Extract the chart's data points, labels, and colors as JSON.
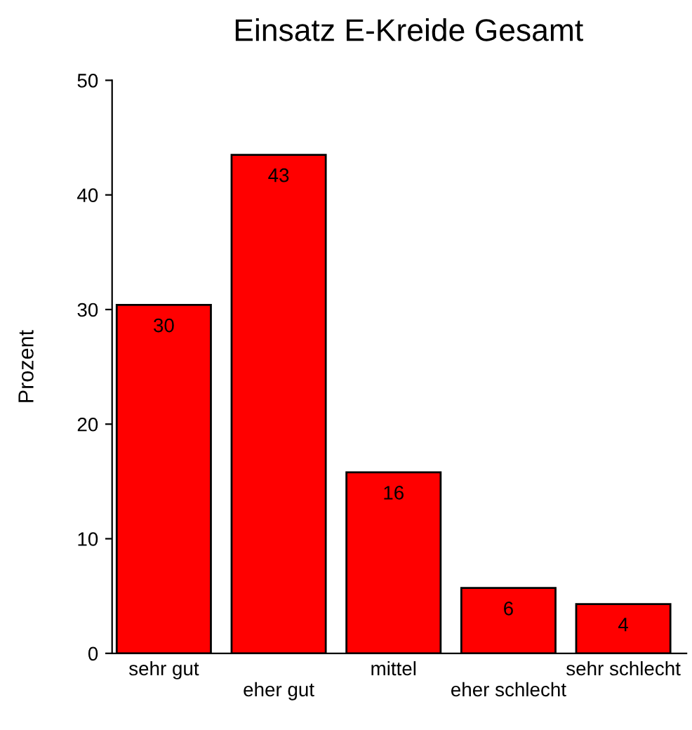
{
  "chart_data": {
    "type": "bar",
    "title": "Einsatz E-Kreide Gesamt",
    "ylabel": "Prozent",
    "categories": [
      "sehr gut",
      "eher gut",
      "mittel",
      "eher schlecht",
      "sehr schlecht"
    ],
    "values": [
      30.4,
      43.5,
      15.8,
      5.7,
      4.3
    ],
    "value_labels": [
      "30",
      "43",
      "16",
      "6",
      "4"
    ],
    "color": "#ff0000",
    "ylim": [
      0,
      50
    ],
    "yticks": [
      0,
      10,
      20,
      30,
      40,
      50
    ],
    "grid": false,
    "legend": false
  }
}
